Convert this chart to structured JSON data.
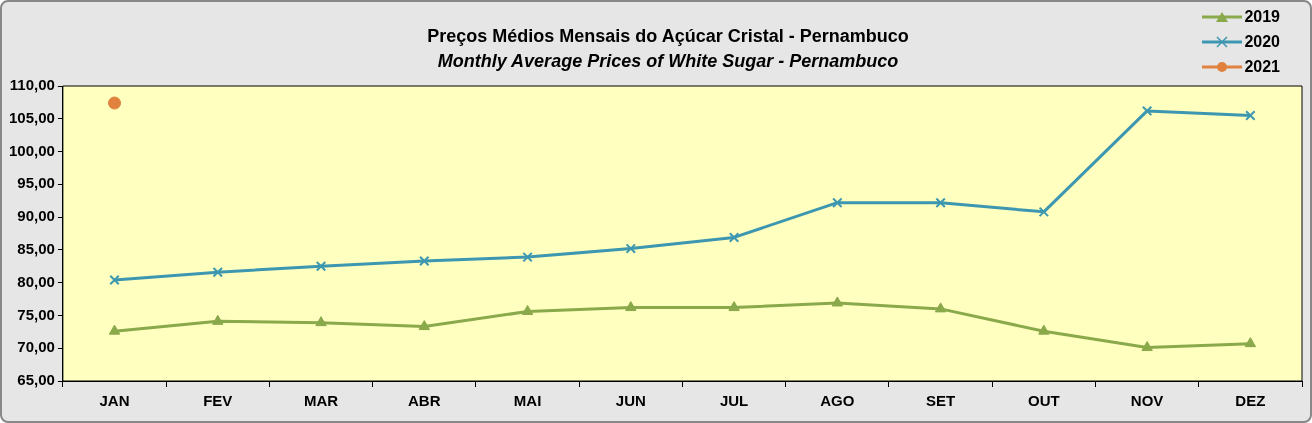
{
  "chart_data": {
    "type": "line",
    "title": "Preços Médios Mensais do Açúcar Cristal - Pernambuco",
    "subtitle": "Monthly Average Prices of White Sugar  - Pernambuco",
    "categories": [
      "JAN",
      "FEV",
      "MAR",
      "ABR",
      "MAI",
      "JUN",
      "JUL",
      "AGO",
      "SET",
      "OUT",
      "NOV",
      "DEZ"
    ],
    "series": [
      {
        "name": "2019",
        "color": "#8aa94b",
        "marker": "triangle",
        "values": [
          72.6,
          74.1,
          73.9,
          73.3,
          75.6,
          76.2,
          76.2,
          76.9,
          76.0,
          72.6,
          70.1,
          70.7
        ]
      },
      {
        "name": "2020",
        "color": "#3d97b0",
        "marker": "cross",
        "values": [
          80.4,
          81.6,
          82.5,
          83.3,
          83.9,
          85.2,
          86.9,
          92.2,
          92.2,
          90.8,
          106.2,
          105.5
        ]
      },
      {
        "name": "2021",
        "color": "#e0823d",
        "marker": "circle",
        "values": [
          107.4,
          null,
          null,
          null,
          null,
          null,
          null,
          null,
          null,
          null,
          null,
          null
        ]
      }
    ],
    "ylim": [
      65,
      110
    ],
    "yticks": [
      {
        "value": 65,
        "label": "65,00"
      },
      {
        "value": 70,
        "label": "70,00"
      },
      {
        "value": 75,
        "label": "75,00"
      },
      {
        "value": 80,
        "label": "80,00"
      },
      {
        "value": 85,
        "label": "85,00"
      },
      {
        "value": 90,
        "label": "90,00"
      },
      {
        "value": 95,
        "label": "95,00"
      },
      {
        "value": 100,
        "label": "100,00"
      },
      {
        "value": 105,
        "label": "105,00"
      },
      {
        "value": 110,
        "label": "110,00"
      }
    ],
    "grid": false,
    "legend": "top right"
  }
}
